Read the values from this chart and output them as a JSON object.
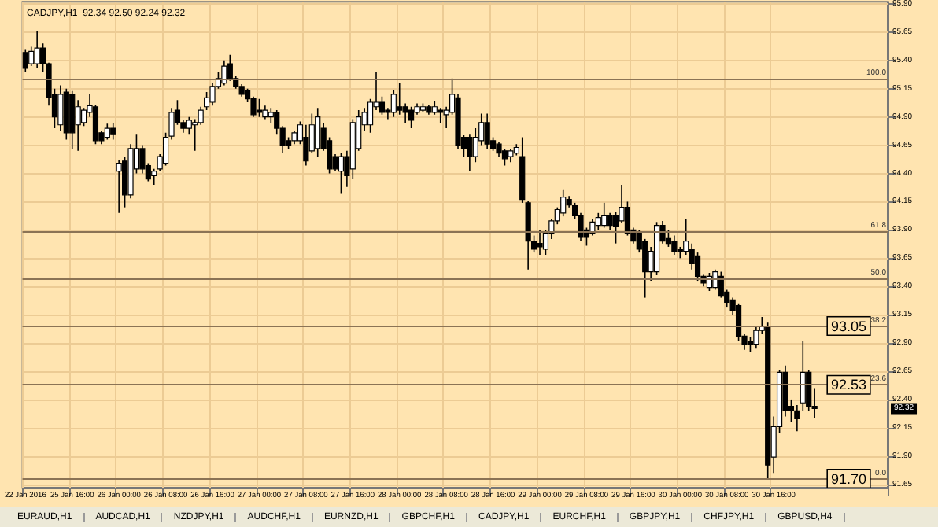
{
  "chart_data": {
    "type": "candlestick",
    "title": "CADJPY,H1  92.34 92.50 92.24 92.32",
    "categories": [
      "22 Jan 2016",
      null,
      null,
      null,
      null,
      null,
      null,
      null,
      "25 Jan 16:00",
      null,
      null,
      null,
      null,
      null,
      null,
      null,
      "26 Jan 00:00",
      null,
      null,
      null,
      null,
      null,
      null,
      null,
      "26 Jan 08:00",
      null,
      null,
      null,
      null,
      null,
      null,
      null,
      "26 Jan 16:00",
      null,
      null,
      null,
      null,
      null,
      null,
      null,
      "27 Jan 00:00",
      null,
      null,
      null,
      null,
      null,
      null,
      null,
      "27 Jan 08:00",
      null,
      null,
      null,
      null,
      null,
      null,
      null,
      "27 Jan 16:00",
      null,
      null,
      null,
      null,
      null,
      null,
      null,
      "28 Jan 00:00",
      null,
      null,
      null,
      null,
      null,
      null,
      null,
      "28 Jan 08:00",
      null,
      null,
      null,
      null,
      null,
      null,
      null,
      "28 Jan 16:00",
      null,
      null,
      null,
      null,
      null,
      null,
      null,
      "29 Jan 00:00",
      null,
      null,
      null,
      null,
      null,
      null,
      null,
      "29 Jan 08:00",
      null,
      null,
      null,
      null,
      null,
      null,
      null,
      "29 Jan 16:00",
      null,
      null,
      null,
      null,
      null,
      null,
      null,
      "30 Jan 00:00",
      null,
      null,
      null,
      null,
      null,
      null,
      null,
      "30 Jan 08:00",
      null,
      null,
      null,
      null,
      null,
      null,
      null,
      "30 Jan 16:00",
      null,
      null,
      null,
      null,
      null,
      null,
      null,
      null,
      null,
      null,
      null,
      null,
      null,
      null,
      null,
      null,
      null,
      null,
      null
    ],
    "ohlc": [
      [
        95.47,
        95.5,
        95.3,
        95.33
      ],
      [
        95.37,
        95.52,
        95.35,
        95.48
      ],
      [
        95.37,
        95.66,
        95.33,
        95.51
      ],
      [
        95.51,
        95.55,
        95.3,
        95.37
      ],
      [
        95.37,
        95.38,
        95.0,
        95.07
      ],
      [
        95.1,
        95.15,
        94.8,
        94.9
      ],
      [
        94.83,
        95.18,
        94.78,
        95.1
      ],
      [
        95.12,
        95.15,
        94.7,
        94.76
      ],
      [
        95.1,
        95.13,
        94.62,
        94.76
      ],
      [
        94.83,
        95.05,
        94.6,
        94.99
      ],
      [
        94.85,
        94.98,
        94.82,
        94.96
      ],
      [
        94.94,
        95.1,
        94.9,
        95.0
      ],
      [
        94.99,
        95.01,
        94.66,
        94.69
      ],
      [
        94.76,
        94.78,
        94.66,
        94.69
      ],
      [
        94.72,
        94.84,
        94.7,
        94.8
      ],
      [
        94.8,
        94.85,
        94.7,
        94.75
      ],
      [
        94.42,
        94.52,
        94.05,
        94.49
      ],
      [
        94.51,
        94.55,
        94.1,
        94.21
      ],
      [
        94.21,
        94.66,
        94.18,
        94.62
      ],
      [
        94.44,
        94.75,
        94.4,
        94.62
      ],
      [
        94.62,
        94.65,
        94.4,
        94.44
      ],
      [
        94.47,
        94.49,
        94.33,
        94.35
      ],
      [
        94.38,
        94.44,
        94.3,
        94.42
      ],
      [
        94.44,
        94.57,
        94.42,
        94.55
      ],
      [
        94.49,
        94.76,
        94.47,
        94.72
      ],
      [
        94.73,
        94.98,
        94.7,
        94.94
      ],
      [
        94.96,
        95.05,
        94.83,
        94.85
      ],
      [
        94.85,
        94.87,
        94.76,
        94.8
      ],
      [
        94.8,
        94.9,
        94.75,
        94.87
      ],
      [
        94.83,
        94.88,
        94.6,
        94.85
      ],
      [
        94.85,
        94.99,
        94.83,
        94.96
      ],
      [
        94.99,
        95.12,
        94.96,
        95.07
      ],
      [
        95.03,
        95.2,
        95.0,
        95.17
      ],
      [
        95.17,
        95.3,
        95.15,
        95.24
      ],
      [
        95.2,
        95.4,
        95.18,
        95.35
      ],
      [
        95.37,
        95.45,
        95.22,
        95.24
      ],
      [
        95.24,
        95.26,
        95.15,
        95.17
      ],
      [
        95.17,
        95.19,
        95.08,
        95.1
      ],
      [
        95.13,
        95.15,
        95.03,
        95.06
      ],
      [
        95.06,
        95.08,
        94.9,
        94.92
      ],
      [
        94.96,
        95.06,
        94.9,
        94.94
      ],
      [
        94.9,
        95.0,
        94.88,
        94.96
      ],
      [
        94.9,
        94.98,
        94.85,
        94.94
      ],
      [
        94.94,
        94.96,
        94.75,
        94.8
      ],
      [
        94.8,
        94.82,
        94.58,
        94.65
      ],
      [
        94.69,
        94.72,
        94.62,
        94.65
      ],
      [
        94.69,
        94.78,
        94.66,
        94.76
      ],
      [
        94.69,
        94.86,
        94.66,
        94.83
      ],
      [
        94.72,
        94.83,
        94.47,
        94.51
      ],
      [
        94.6,
        94.93,
        94.58,
        94.83
      ],
      [
        94.62,
        94.98,
        94.55,
        94.9
      ],
      [
        94.8,
        94.85,
        94.6,
        94.62
      ],
      [
        94.69,
        94.72,
        94.4,
        94.44
      ],
      [
        94.55,
        94.57,
        94.42,
        94.44
      ],
      [
        94.42,
        94.58,
        94.22,
        94.55
      ],
      [
        94.55,
        94.6,
        94.28,
        94.38
      ],
      [
        94.44,
        94.88,
        94.35,
        94.85
      ],
      [
        94.62,
        94.96,
        94.6,
        94.9
      ],
      [
        94.83,
        94.98,
        94.78,
        94.94
      ],
      [
        94.83,
        95.06,
        94.76,
        95.03
      ],
      [
        94.99,
        95.3,
        94.96,
        95.03
      ],
      [
        95.03,
        95.08,
        94.92,
        94.94
      ],
      [
        94.96,
        94.98,
        94.88,
        94.94
      ],
      [
        94.94,
        95.14,
        94.9,
        95.1
      ],
      [
        94.99,
        95.2,
        94.92,
        94.96
      ],
      [
        94.99,
        95.02,
        94.85,
        94.94
      ],
      [
        94.96,
        94.99,
        94.8,
        94.87
      ],
      [
        94.94,
        95.02,
        94.92,
        94.99
      ],
      [
        94.96,
        95.02,
        94.94,
        94.99
      ],
      [
        94.99,
        95.01,
        94.92,
        94.94
      ],
      [
        94.94,
        95.04,
        94.92,
        94.99
      ],
      [
        94.96,
        94.98,
        94.85,
        94.94
      ],
      [
        94.92,
        94.99,
        94.8,
        94.96
      ],
      [
        94.94,
        95.24,
        94.92,
        95.1
      ],
      [
        95.07,
        95.1,
        94.62,
        94.65
      ],
      [
        94.72,
        94.74,
        94.55,
        94.62
      ],
      [
        94.72,
        94.75,
        94.42,
        94.55
      ],
      [
        94.55,
        94.8,
        94.5,
        94.72
      ],
      [
        94.69,
        94.93,
        94.65,
        94.85
      ],
      [
        94.85,
        94.93,
        94.62,
        94.66
      ],
      [
        94.69,
        94.72,
        94.6,
        94.62
      ],
      [
        94.66,
        94.68,
        94.55,
        94.58
      ],
      [
        94.6,
        94.62,
        94.47,
        94.53
      ],
      [
        94.55,
        94.62,
        94.5,
        94.6
      ],
      [
        94.58,
        94.66,
        94.56,
        94.63
      ],
      [
        94.55,
        94.72,
        94.14,
        94.17
      ],
      [
        94.14,
        94.16,
        93.55,
        93.8
      ],
      [
        93.8,
        93.85,
        93.7,
        93.73
      ],
      [
        93.78,
        93.9,
        93.68,
        93.75
      ],
      [
        93.73,
        93.9,
        93.68,
        93.87
      ],
      [
        93.87,
        94.0,
        93.82,
        93.98
      ],
      [
        93.98,
        94.1,
        93.95,
        94.08
      ],
      [
        94.05,
        94.26,
        94.02,
        94.19
      ],
      [
        94.17,
        94.2,
        94.1,
        94.12
      ],
      [
        94.12,
        94.14,
        94.0,
        94.03
      ],
      [
        94.03,
        94.05,
        93.8,
        93.84
      ],
      [
        93.9,
        93.92,
        93.76,
        93.84
      ],
      [
        93.87,
        94.0,
        93.85,
        93.97
      ],
      [
        93.94,
        94.05,
        93.9,
        94.01
      ],
      [
        93.94,
        94.14,
        93.92,
        94.03
      ],
      [
        94.03,
        94.05,
        93.9,
        93.94
      ],
      [
        94.03,
        94.06,
        93.78,
        93.93
      ],
      [
        93.98,
        94.3,
        93.96,
        94.1
      ],
      [
        94.1,
        94.15,
        93.85,
        93.87
      ],
      [
        93.9,
        93.92,
        93.78,
        93.8
      ],
      [
        93.87,
        93.9,
        93.7,
        93.73
      ],
      [
        93.8,
        93.82,
        93.3,
        93.53
      ],
      [
        93.53,
        93.75,
        93.45,
        93.71
      ],
      [
        93.53,
        93.97,
        93.5,
        93.94
      ],
      [
        93.94,
        93.98,
        93.78,
        93.8
      ],
      [
        93.83,
        93.9,
        93.75,
        93.78
      ],
      [
        93.8,
        93.85,
        93.68,
        93.71
      ],
      [
        93.73,
        93.75,
        93.65,
        93.71
      ],
      [
        93.71,
        94.0,
        93.68,
        93.8
      ],
      [
        93.73,
        93.78,
        93.55,
        93.6
      ],
      [
        93.67,
        93.7,
        93.45,
        93.49
      ],
      [
        93.49,
        93.51,
        93.4,
        93.43
      ],
      [
        93.39,
        93.52,
        93.36,
        93.49
      ],
      [
        93.39,
        93.55,
        93.37,
        93.53
      ],
      [
        93.49,
        93.53,
        93.3,
        93.32
      ],
      [
        93.35,
        93.37,
        93.22,
        93.26
      ],
      [
        93.28,
        93.3,
        93.15,
        93.19
      ],
      [
        93.23,
        93.25,
        92.92,
        92.96
      ],
      [
        92.96,
        92.98,
        92.84,
        92.89
      ],
      [
        92.91,
        92.95,
        92.82,
        92.89
      ],
      [
        92.89,
        93.05,
        92.85,
        93.01
      ],
      [
        93.01,
        93.13,
        92.98,
        93.05
      ],
      [
        93.05,
        93.08,
        91.7,
        91.82
      ],
      [
        91.89,
        92.25,
        91.75,
        92.16
      ],
      [
        92.16,
        92.66,
        92.1,
        92.64
      ],
      [
        92.64,
        92.7,
        92.25,
        92.3
      ],
      [
        92.34,
        92.4,
        92.2,
        92.3
      ],
      [
        92.3,
        92.35,
        92.12,
        92.23
      ],
      [
        92.37,
        92.92,
        92.3,
        92.64
      ],
      [
        92.64,
        92.66,
        92.3,
        92.34
      ],
      [
        92.34,
        92.5,
        92.24,
        92.32
      ],
      null,
      null,
      null,
      null,
      null,
      null,
      null,
      null,
      null,
      null,
      null,
      null
    ],
    "ylim": [
      91.62,
      95.92
    ],
    "yticks": [
      {
        "value": 95.9,
        "label": "95.90"
      },
      {
        "value": 95.65,
        "label": "95.65"
      },
      {
        "value": 95.4,
        "label": "95.40"
      },
      {
        "value": 95.15,
        "label": "95.15"
      },
      {
        "value": 94.9,
        "label": "94.90"
      },
      {
        "value": 94.65,
        "label": "94.65"
      },
      {
        "value": 94.4,
        "label": "94.40"
      },
      {
        "value": 94.15,
        "label": "94.15"
      },
      {
        "value": 93.9,
        "label": "93.90"
      },
      {
        "value": 93.65,
        "label": "93.65"
      },
      {
        "value": 93.4,
        "label": "93.40"
      },
      {
        "value": 93.15,
        "label": "93.15"
      },
      {
        "value": 92.9,
        "label": "92.90"
      },
      {
        "value": 92.65,
        "label": "92.65"
      },
      {
        "value": 92.4,
        "label": "92.40"
      },
      {
        "value": 92.15,
        "label": "92.15"
      },
      {
        "value": 91.9,
        "label": "91.90"
      },
      {
        "value": 91.65,
        "label": "91.65"
      }
    ],
    "grid": true,
    "ref_lines": [
      {
        "axis": "y",
        "value": 95.24,
        "color": "#8b7355"
      },
      {
        "axis": "y",
        "value": 93.89,
        "color": "#8b7355"
      },
      {
        "axis": "y",
        "value": 93.47,
        "color": "#8b7355"
      },
      {
        "axis": "y",
        "value": 93.05,
        "color": "#8b7355"
      },
      {
        "axis": "y",
        "value": 92.53,
        "color": "#8b7355"
      },
      {
        "axis": "y",
        "value": 91.7,
        "color": "#8b7355"
      }
    ],
    "annotations": [
      {
        "text": "100.0",
        "y": 95.24
      },
      {
        "text": "61.8",
        "y": 93.89
      },
      {
        "text": "50.0",
        "y": 93.47
      },
      {
        "text": "38.2",
        "y": 93.05
      },
      {
        "text": "23.6",
        "y": 92.53
      },
      {
        "text": "0.0",
        "y": 91.7
      },
      {
        "text": "93.05",
        "y": 93.05
      },
      {
        "text": "92.53",
        "y": 92.53
      },
      {
        "text": "91.70",
        "y": 91.7
      },
      {
        "text": "92.32",
        "y": 92.32
      },
      "EURAUD,H1",
      "AUDCAD,H1",
      "NZDJPY,H1",
      "AUDCHF,H1",
      "EURNZD,H1",
      "GBPCHF,H1",
      "CADJPY,H1",
      "EURCHF,H1",
      "GBPJPY,H1",
      "CHFJPY,H1",
      "GBPUSD,H4"
    ]
  }
}
